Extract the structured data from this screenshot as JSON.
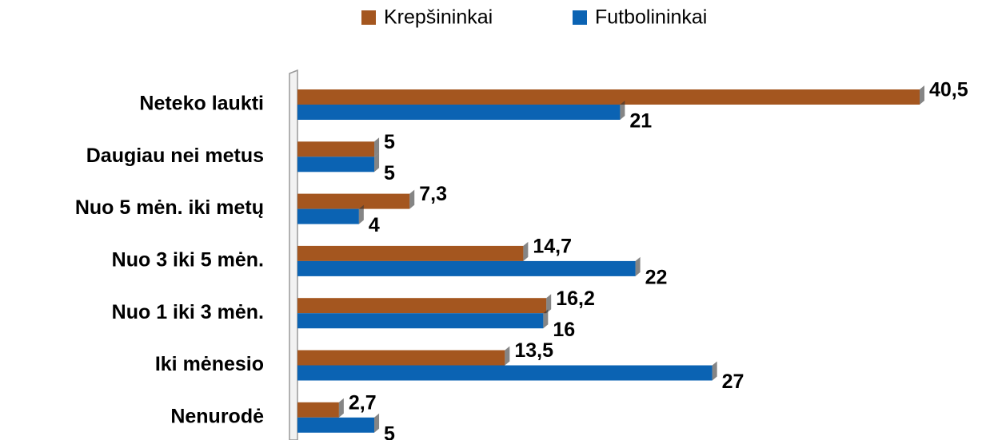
{
  "chart_data": {
    "type": "bar",
    "orientation": "horizontal",
    "categories": [
      "Neteko laukti",
      "Daugiau nei metus",
      "Nuo 5 mėn. iki metų",
      "Nuo 3 iki 5 mėn.",
      "Nuo 1 iki 3 mėn.",
      "Iki mėnesio",
      "Nenurodė"
    ],
    "series": [
      {
        "name": "Krepšininkai",
        "color": "#a4561f",
        "values": [
          40.5,
          5,
          7.3,
          14.7,
          16.2,
          13.5,
          2.7
        ],
        "value_labels": [
          "40,5",
          "5",
          "7,3",
          "14,7",
          "16,2",
          "13,5",
          "2,7"
        ]
      },
      {
        "name": "Futbolininkai",
        "color": "#0b63b3",
        "values": [
          21,
          5,
          4,
          22,
          16,
          27,
          5
        ],
        "value_labels": [
          "21",
          "5",
          "4",
          "22",
          "16",
          "27",
          "5"
        ]
      }
    ],
    "legend": "top"
  }
}
